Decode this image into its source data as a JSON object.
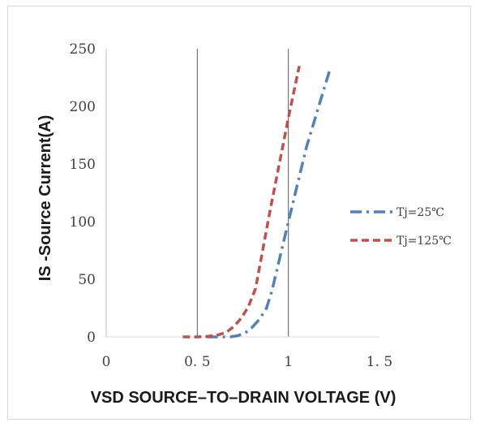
{
  "chart_data": {
    "type": "line",
    "title": "",
    "xlabel": "VSD SOURCE–TO–DRAIN VOLTAGE (V)",
    "ylabel": "IS -Source Current(A)",
    "xlim": [
      0,
      1.5
    ],
    "ylim": [
      0,
      250
    ],
    "x_ticks": [
      0,
      0.5,
      1,
      1.5
    ],
    "x_tick_labels": [
      "0",
      "0. 5",
      "1",
      "1. 5"
    ],
    "y_ticks": [
      0,
      50,
      100,
      150,
      200,
      250
    ],
    "y_tick_labels": [
      "0",
      "50",
      "100",
      "150",
      "200",
      "250"
    ],
    "grid": "vertical major gridlines",
    "legend_position": "right",
    "series": [
      {
        "name": "Tj=25℃",
        "color": "#4f81bd",
        "dash": "dash-dot",
        "x": [
          0.55,
          0.62,
          0.68,
          0.72,
          0.76,
          0.8,
          0.84,
          0.88,
          0.91,
          1.0,
          1.1,
          1.23
        ],
        "y": [
          0,
          0,
          0,
          1,
          3,
          8,
          15,
          25,
          40,
          100,
          165,
          233
        ]
      },
      {
        "name": "Tj=125℃",
        "color": "#c0504d",
        "dash": "dashed",
        "x": [
          0.42,
          0.5,
          0.56,
          0.62,
          0.66,
          0.7,
          0.74,
          0.78,
          0.82,
          0.9,
          1.0,
          1.06
        ],
        "y": [
          0,
          0,
          0.5,
          2,
          4,
          9,
          16,
          26,
          42,
          110,
          190,
          235
        ]
      }
    ]
  }
}
